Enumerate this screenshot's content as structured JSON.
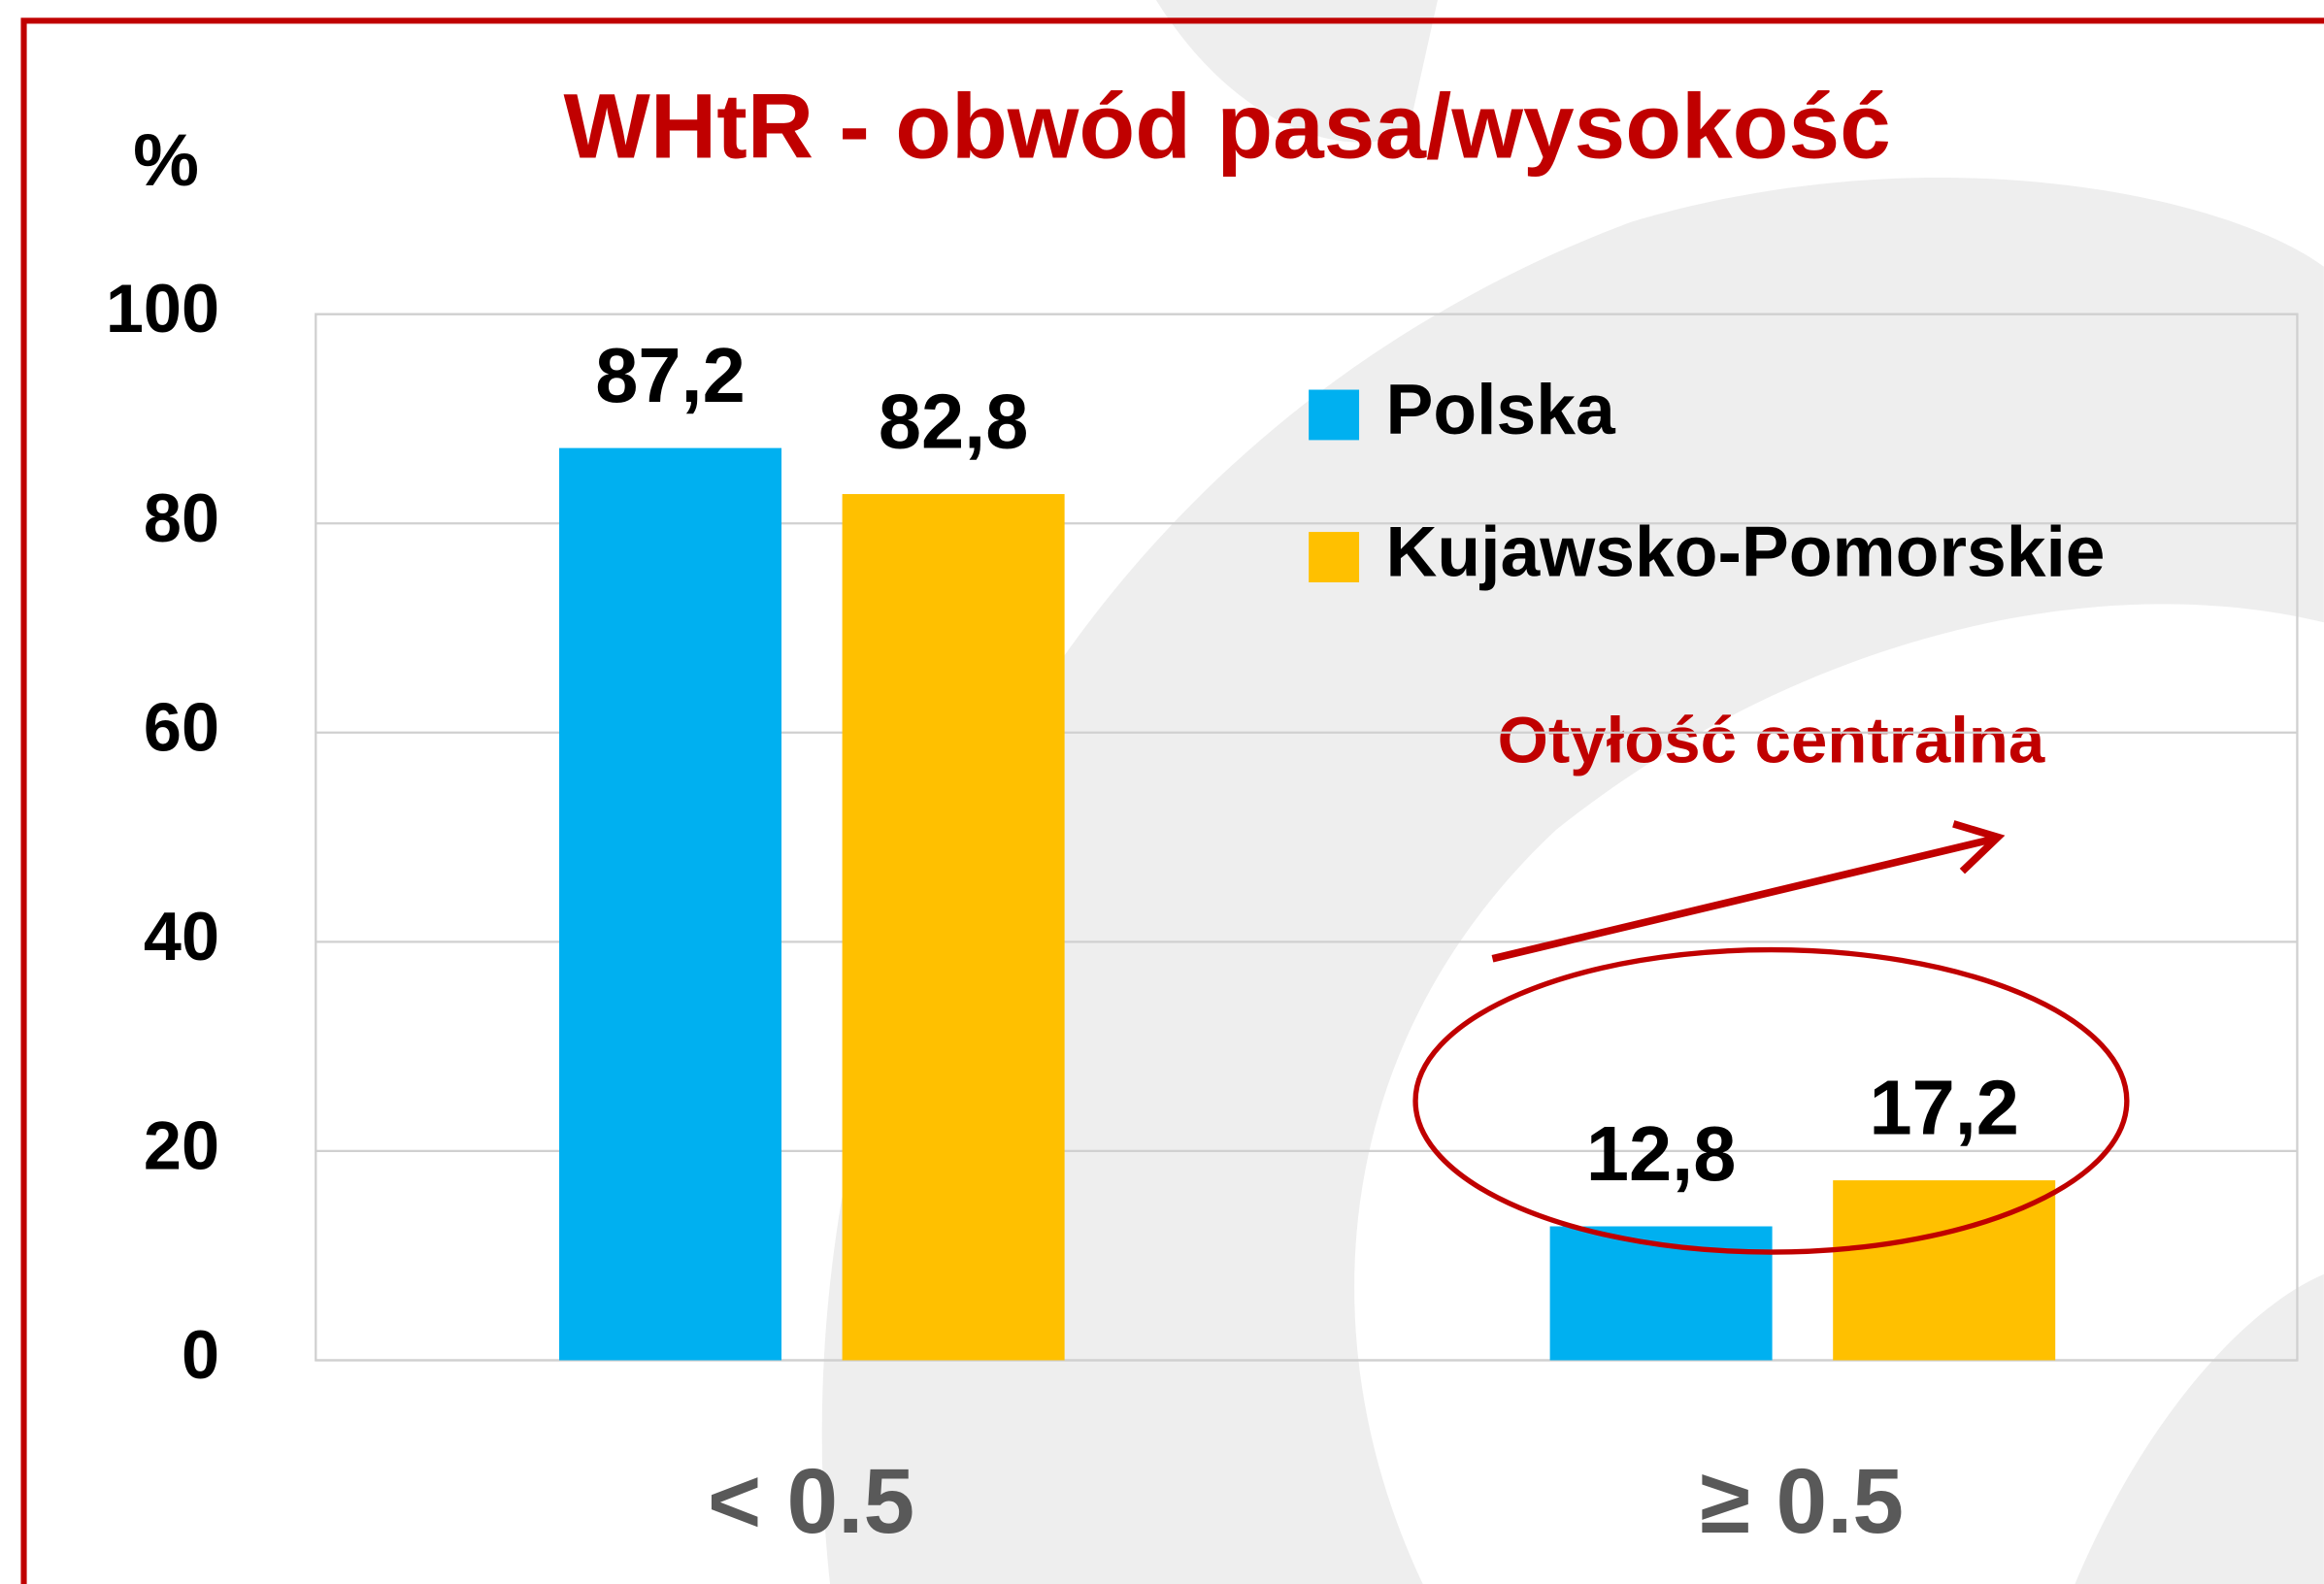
{
  "chart_data": {
    "type": "bar",
    "title": "WHtR - obwód pasa/wysokość",
    "y_label": "%",
    "categories": [
      "< 0.5",
      "≥ 0.5"
    ],
    "series": [
      {
        "name": "Polska",
        "color": "#00b0f0",
        "values": [
          87.2,
          12.8
        ],
        "value_labels": [
          "87,2",
          "12,8"
        ]
      },
      {
        "name": "Kujawsko-Pomorskie",
        "color": "#ffc000",
        "values": [
          82.8,
          17.2
        ],
        "value_labels": [
          "82,8",
          "17,2"
        ]
      }
    ],
    "ylim": [
      0,
      100
    ],
    "yticks": [
      0,
      20,
      40,
      60,
      80,
      100
    ],
    "grid": true,
    "legend_position": "top-right",
    "annotation": "Otyłość centralna"
  }
}
